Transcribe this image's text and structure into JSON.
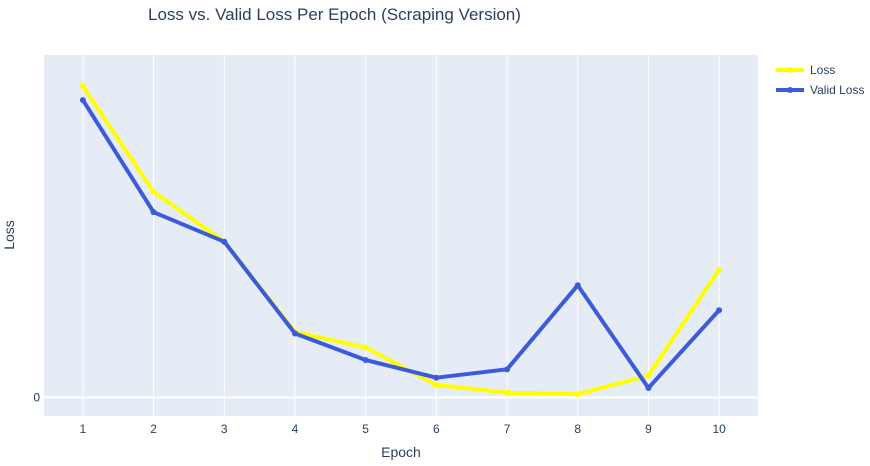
{
  "chart_data": {
    "type": "line",
    "title": "Loss vs. Valid Loss Per Epoch (Scraping Version)",
    "xlabel": "Epoch",
    "ylabel": "Loss",
    "x": [
      1,
      2,
      3,
      4,
      5,
      6,
      7,
      8,
      9,
      10
    ],
    "x_tick_labels": [
      "1",
      "2",
      "3",
      "4",
      "5",
      "6",
      "7",
      "8",
      "9",
      "10"
    ],
    "y_tick_labels": [
      "0"
    ],
    "xlim": [
      0.45,
      10.55
    ],
    "ylim": [
      -0.06,
      1.1
    ],
    "grid": true,
    "legend_position": "top-right",
    "series": [
      {
        "name": "Loss",
        "color": "#ffff00",
        "values": [
          1.0,
          0.66,
          0.5,
          0.21,
          0.16,
          0.04,
          0.015,
          0.01,
          0.07,
          0.41
        ]
      },
      {
        "name": "Valid Loss",
        "color": "#3b5bdb",
        "values": [
          0.955,
          0.595,
          0.5,
          0.205,
          0.12,
          0.063,
          0.09,
          0.36,
          0.03,
          0.28
        ]
      }
    ]
  }
}
